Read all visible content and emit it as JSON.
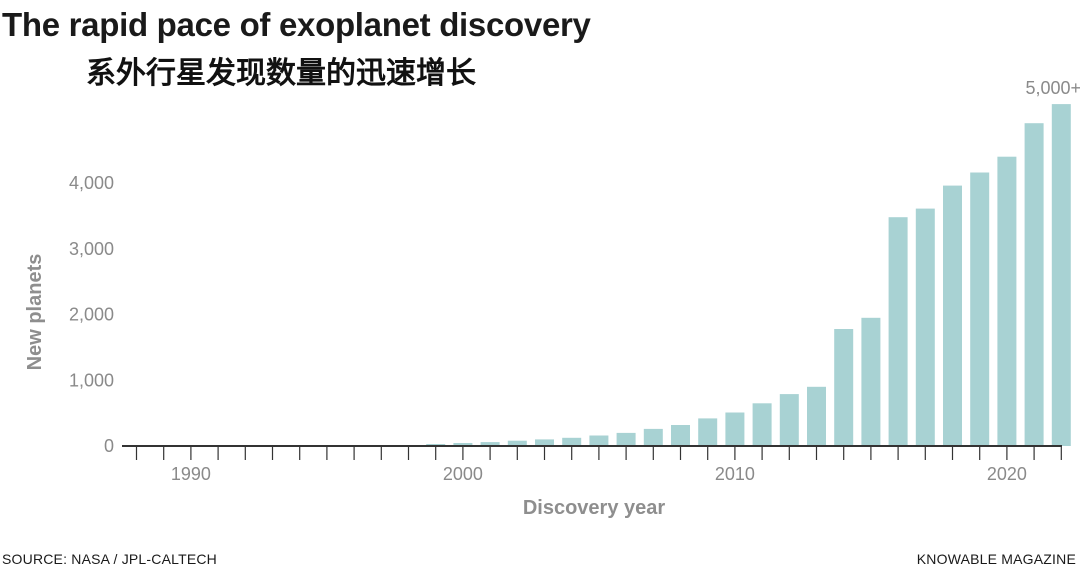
{
  "header": {
    "title": "The rapid pace of exoplanet discovery",
    "subtitle": "系外行星发现数量的迅速增长"
  },
  "footer": {
    "source": "SOURCE: NASA / JPL-CALTECH",
    "credit": "KNOWABLE MAGAZINE"
  },
  "colors": {
    "bar": "#a8d2d3",
    "axis": "#333333",
    "text_muted": "#8a8a8a"
  },
  "chart_data": {
    "type": "bar",
    "title": "The rapid pace of exoplanet discovery",
    "subtitle": "系外行星发现数量的迅速增长",
    "xlabel": "Discovery year",
    "ylabel": "New planets",
    "x_ticks": [
      "1990",
      "2000",
      "2010",
      "2020"
    ],
    "y_ticks": [
      "0",
      "1,000",
      "2,000",
      "3,000",
      "4,000"
    ],
    "ylim": [
      0,
      5300
    ],
    "grid": false,
    "categories": [
      1988,
      1989,
      1990,
      1991,
      1992,
      1993,
      1994,
      1995,
      1996,
      1997,
      1998,
      1999,
      2000,
      2001,
      2002,
      2003,
      2004,
      2005,
      2006,
      2007,
      2008,
      2009,
      2010,
      2011,
      2012,
      2013,
      2014,
      2015,
      2016,
      2017,
      2018,
      2019,
      2020,
      2021,
      2022
    ],
    "values": [
      0,
      0,
      0,
      0,
      0,
      0,
      0,
      0,
      0,
      0,
      15,
      30,
      45,
      60,
      80,
      100,
      125,
      160,
      200,
      260,
      320,
      420,
      510,
      650,
      790,
      900,
      1780,
      1950,
      3480,
      3610,
      3960,
      4160,
      4400,
      4910,
      5200
    ],
    "annotations": [
      {
        "category": 2022,
        "text": "5,000+"
      }
    ]
  }
}
